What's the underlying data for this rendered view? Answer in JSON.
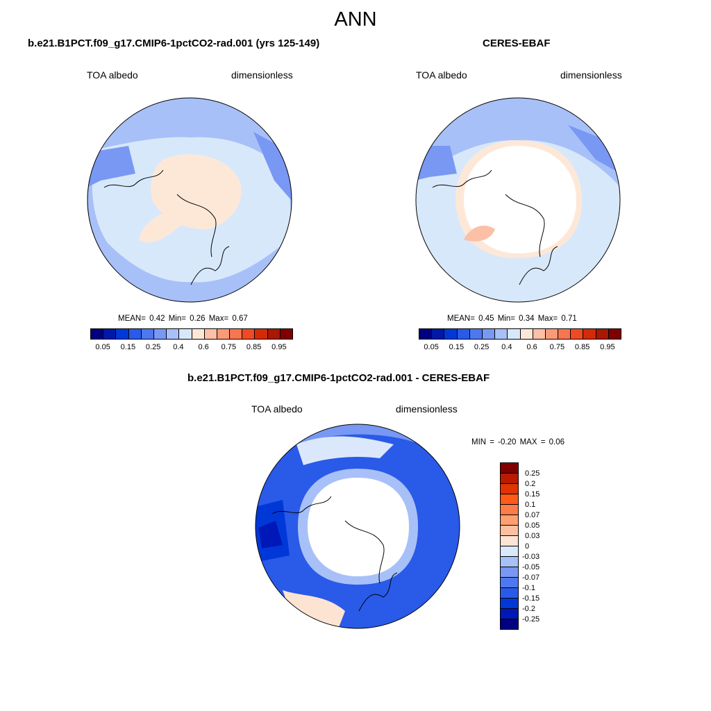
{
  "title": "ANN",
  "panels": [
    {
      "name": "model",
      "title": "b.e21.B1PCT.f09_g17.CMIP6-1pctCO2-rad.001 (yrs 125-149)",
      "variable": "TOA albedo",
      "units": "dimensionless",
      "stats": "MEAN=   0.42  Min=   0.26  Max=   0.67"
    },
    {
      "name": "obs",
      "title": "CERES-EBAF",
      "variable": "TOA albedo",
      "units": "dimensionless",
      "stats": "MEAN=   0.45  Min=   0.34  Max=   0.71"
    }
  ],
  "diff": {
    "title": "b.e21.B1PCT.f09_g17.CMIP6-1pctCO2-rad.001 - CERES-EBAF",
    "variable": "TOA albedo",
    "units": "dimensionless",
    "stats": "MIN =  -0.20 MAX =   0.06"
  },
  "colorbar_top": {
    "colors": [
      "#000080",
      "#0018a8",
      "#0038d8",
      "#2a5ae8",
      "#4e78f0",
      "#7898f4",
      "#a8c0f8",
      "#d8e8fb",
      "#fde8d8",
      "#fbc0a6",
      "#f99a78",
      "#f67650",
      "#ef4a24",
      "#d42a08",
      "#a81804",
      "#800000"
    ],
    "labels": [
      "0.05",
      "0.15",
      "0.25",
      "0.4",
      "0.6",
      "0.75",
      "0.85",
      "0.95"
    ]
  },
  "colorbar_diff": {
    "colors": [
      "#800000",
      "#b81a02",
      "#e03404",
      "#ff5a18",
      "#ff7c48",
      "#ffa070",
      "#fcc0a0",
      "#fde4d2",
      "#dbe8fb",
      "#a8c0f8",
      "#7898f4",
      "#4e78f0",
      "#2a5ae8",
      "#0038d8",
      "#0018b8",
      "#000080"
    ],
    "labels": [
      "0.25",
      "0.2",
      "0.15",
      "0.1",
      "0.07",
      "0.05",
      "0.03",
      "0",
      "-0.03",
      "-0.05",
      "-0.07",
      "-0.1",
      "-0.15",
      "-0.2",
      "-0.25"
    ]
  },
  "chart_data": [
    {
      "type": "heatmap",
      "title": "b.e21.B1PCT.f09_g17.CMIP6-1pctCO2-rad.001 (yrs 125-149)",
      "projection": "north polar stereographic",
      "variable": "TOA albedo",
      "units": "dimensionless",
      "mean": 0.42,
      "min": 0.26,
      "max": 0.67,
      "contour_levels": [
        0.05,
        0.1,
        0.15,
        0.2,
        0.25,
        0.3,
        0.35,
        0.4,
        0.5,
        0.6,
        0.65,
        0.75,
        0.8,
        0.85,
        0.9,
        0.95
      ]
    },
    {
      "type": "heatmap",
      "title": "CERES-EBAF",
      "projection": "north polar stereographic",
      "variable": "TOA albedo",
      "units": "dimensionless",
      "mean": 0.45,
      "min": 0.34,
      "max": 0.71,
      "contour_levels": [
        0.05,
        0.1,
        0.15,
        0.2,
        0.25,
        0.3,
        0.35,
        0.4,
        0.5,
        0.6,
        0.65,
        0.75,
        0.8,
        0.85,
        0.9,
        0.95
      ]
    },
    {
      "type": "heatmap",
      "title": "b.e21.B1PCT.f09_g17.CMIP6-1pctCO2-rad.001 - CERES-EBAF",
      "projection": "north polar stereographic",
      "variable": "TOA albedo",
      "units": "dimensionless",
      "min": -0.2,
      "max": 0.06,
      "contour_levels": [
        -0.25,
        -0.2,
        -0.15,
        -0.1,
        -0.07,
        -0.05,
        -0.03,
        0,
        0.03,
        0.05,
        0.07,
        0.1,
        0.15,
        0.2,
        0.25
      ]
    }
  ]
}
